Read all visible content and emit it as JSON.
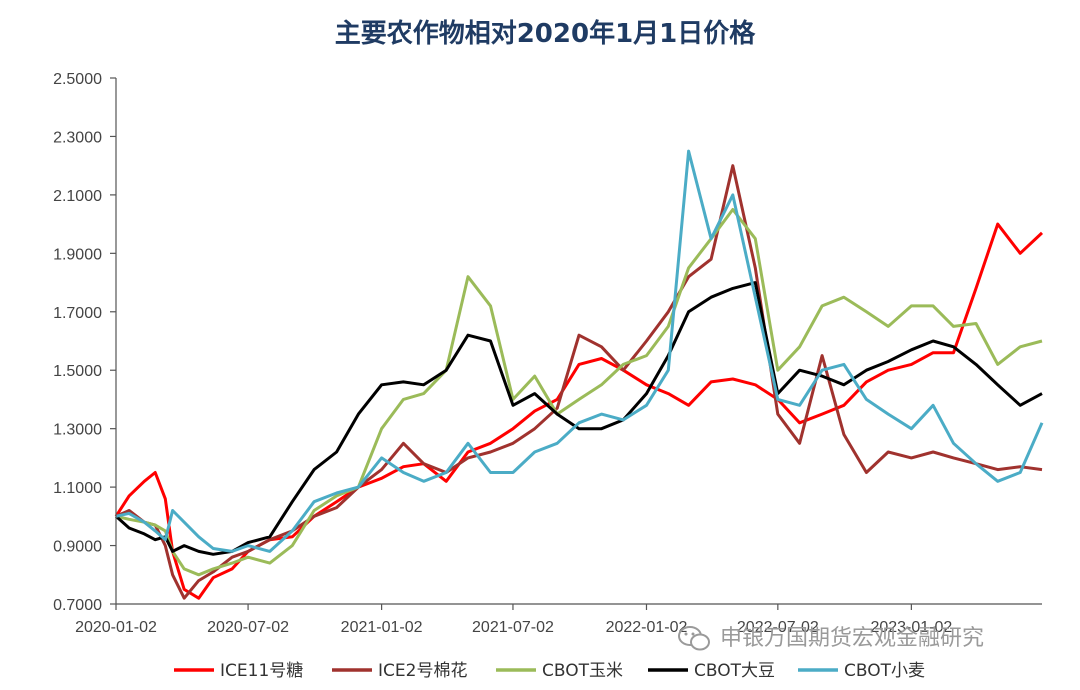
{
  "chart_data": {
    "type": "line",
    "title": "主要农作物相对2020年1月1日价格",
    "xlabel": "",
    "ylabel": "",
    "ylim": [
      0.7,
      2.5
    ],
    "yticks": [
      "0.7000",
      "0.9000",
      "1.1000",
      "1.3000",
      "1.5000",
      "1.7000",
      "1.9000",
      "2.1000",
      "2.3000",
      "2.5000"
    ],
    "x_range": [
      "2020-01-02",
      "2023-07-01"
    ],
    "xticks": [
      "2020-01-02",
      "2020-07-02",
      "2021-01-02",
      "2021-07-02",
      "2022-01-02",
      "2022-07-02",
      "2023-01-02"
    ],
    "grid": false,
    "legend": "bottom",
    "series": [
      {
        "name": "ICE11号糖",
        "color": "#FF0000",
        "points": [
          [
            "2020-01-02",
            1.0
          ],
          [
            "2020-01-20",
            1.07
          ],
          [
            "2020-02-10",
            1.12
          ],
          [
            "2020-02-25",
            1.15
          ],
          [
            "2020-03-10",
            1.06
          ],
          [
            "2020-03-20",
            0.88
          ],
          [
            "2020-04-05",
            0.75
          ],
          [
            "2020-04-25",
            0.72
          ],
          [
            "2020-05-15",
            0.79
          ],
          [
            "2020-06-10",
            0.82
          ],
          [
            "2020-07-02",
            0.88
          ],
          [
            "2020-08-01",
            0.92
          ],
          [
            "2020-09-01",
            0.93
          ],
          [
            "2020-10-01",
            1.0
          ],
          [
            "2020-11-01",
            1.05
          ],
          [
            "2020-12-01",
            1.1
          ],
          [
            "2021-01-02",
            1.13
          ],
          [
            "2021-02-01",
            1.17
          ],
          [
            "2021-03-01",
            1.18
          ],
          [
            "2021-04-01",
            1.12
          ],
          [
            "2021-05-01",
            1.22
          ],
          [
            "2021-06-01",
            1.25
          ],
          [
            "2021-07-02",
            1.3
          ],
          [
            "2021-08-01",
            1.36
          ],
          [
            "2021-09-01",
            1.4
          ],
          [
            "2021-10-01",
            1.52
          ],
          [
            "2021-11-01",
            1.54
          ],
          [
            "2021-12-01",
            1.5
          ],
          [
            "2022-01-02",
            1.45
          ],
          [
            "2022-02-01",
            1.42
          ],
          [
            "2022-03-01",
            1.38
          ],
          [
            "2022-04-01",
            1.46
          ],
          [
            "2022-05-01",
            1.47
          ],
          [
            "2022-06-01",
            1.45
          ],
          [
            "2022-07-02",
            1.4
          ],
          [
            "2022-08-01",
            1.32
          ],
          [
            "2022-09-01",
            1.35
          ],
          [
            "2022-10-01",
            1.38
          ],
          [
            "2022-11-01",
            1.46
          ],
          [
            "2022-12-01",
            1.5
          ],
          [
            "2023-01-02",
            1.52
          ],
          [
            "2023-02-01",
            1.56
          ],
          [
            "2023-03-01",
            1.56
          ],
          [
            "2023-04-01",
            1.78
          ],
          [
            "2023-05-01",
            2.0
          ],
          [
            "2023-06-01",
            1.9
          ],
          [
            "2023-07-01",
            1.97
          ]
        ]
      },
      {
        "name": "ICE2号棉花",
        "color": "#A0322E",
        "points": [
          [
            "2020-01-02",
            1.0
          ],
          [
            "2020-01-20",
            1.02
          ],
          [
            "2020-02-10",
            0.98
          ],
          [
            "2020-02-25",
            0.97
          ],
          [
            "2020-03-10",
            0.9
          ],
          [
            "2020-03-20",
            0.8
          ],
          [
            "2020-04-05",
            0.72
          ],
          [
            "2020-04-25",
            0.78
          ],
          [
            "2020-05-15",
            0.81
          ],
          [
            "2020-06-10",
            0.86
          ],
          [
            "2020-07-02",
            0.88
          ],
          [
            "2020-08-01",
            0.92
          ],
          [
            "2020-09-01",
            0.95
          ],
          [
            "2020-10-01",
            1.0
          ],
          [
            "2020-11-01",
            1.03
          ],
          [
            "2020-12-01",
            1.1
          ],
          [
            "2021-01-02",
            1.16
          ],
          [
            "2021-02-01",
            1.25
          ],
          [
            "2021-03-01",
            1.18
          ],
          [
            "2021-04-01",
            1.15
          ],
          [
            "2021-05-01",
            1.2
          ],
          [
            "2021-06-01",
            1.22
          ],
          [
            "2021-07-02",
            1.25
          ],
          [
            "2021-08-01",
            1.3
          ],
          [
            "2021-09-01",
            1.37
          ],
          [
            "2021-10-01",
            1.62
          ],
          [
            "2021-11-01",
            1.58
          ],
          [
            "2021-12-01",
            1.5
          ],
          [
            "2022-01-02",
            1.6
          ],
          [
            "2022-02-01",
            1.7
          ],
          [
            "2022-03-01",
            1.82
          ],
          [
            "2022-04-01",
            1.88
          ],
          [
            "2022-05-01",
            2.2
          ],
          [
            "2022-06-01",
            1.85
          ],
          [
            "2022-07-02",
            1.35
          ],
          [
            "2022-08-01",
            1.25
          ],
          [
            "2022-09-01",
            1.55
          ],
          [
            "2022-10-01",
            1.28
          ],
          [
            "2022-11-01",
            1.15
          ],
          [
            "2022-12-01",
            1.22
          ],
          [
            "2023-01-02",
            1.2
          ],
          [
            "2023-02-01",
            1.22
          ],
          [
            "2023-03-01",
            1.2
          ],
          [
            "2023-04-01",
            1.18
          ],
          [
            "2023-05-01",
            1.16
          ],
          [
            "2023-06-01",
            1.17
          ],
          [
            "2023-07-01",
            1.16
          ]
        ]
      },
      {
        "name": "CBOT玉米",
        "color": "#9BBB59",
        "points": [
          [
            "2020-01-02",
            1.0
          ],
          [
            "2020-01-20",
            0.99
          ],
          [
            "2020-02-10",
            0.98
          ],
          [
            "2020-02-25",
            0.97
          ],
          [
            "2020-03-10",
            0.95
          ],
          [
            "2020-03-20",
            0.88
          ],
          [
            "2020-04-05",
            0.82
          ],
          [
            "2020-04-25",
            0.8
          ],
          [
            "2020-05-15",
            0.82
          ],
          [
            "2020-06-10",
            0.84
          ],
          [
            "2020-07-02",
            0.86
          ],
          [
            "2020-08-01",
            0.84
          ],
          [
            "2020-09-01",
            0.9
          ],
          [
            "2020-10-01",
            1.02
          ],
          [
            "2020-11-01",
            1.07
          ],
          [
            "2020-12-01",
            1.1
          ],
          [
            "2021-01-02",
            1.3
          ],
          [
            "2021-02-01",
            1.4
          ],
          [
            "2021-03-01",
            1.42
          ],
          [
            "2021-04-01",
            1.5
          ],
          [
            "2021-05-01",
            1.82
          ],
          [
            "2021-06-01",
            1.72
          ],
          [
            "2021-07-02",
            1.4
          ],
          [
            "2021-08-01",
            1.48
          ],
          [
            "2021-09-01",
            1.35
          ],
          [
            "2021-10-01",
            1.4
          ],
          [
            "2021-11-01",
            1.45
          ],
          [
            "2021-12-01",
            1.52
          ],
          [
            "2022-01-02",
            1.55
          ],
          [
            "2022-02-01",
            1.65
          ],
          [
            "2022-03-01",
            1.85
          ],
          [
            "2022-04-01",
            1.95
          ],
          [
            "2022-05-01",
            2.05
          ],
          [
            "2022-06-01",
            1.95
          ],
          [
            "2022-07-02",
            1.5
          ],
          [
            "2022-08-01",
            1.58
          ],
          [
            "2022-09-01",
            1.72
          ],
          [
            "2022-10-01",
            1.75
          ],
          [
            "2022-11-01",
            1.7
          ],
          [
            "2022-12-01",
            1.65
          ],
          [
            "2023-01-02",
            1.72
          ],
          [
            "2023-02-01",
            1.72
          ],
          [
            "2023-03-01",
            1.65
          ],
          [
            "2023-04-01",
            1.66
          ],
          [
            "2023-05-01",
            1.52
          ],
          [
            "2023-06-01",
            1.58
          ],
          [
            "2023-07-01",
            1.6
          ]
        ]
      },
      {
        "name": "CBOT大豆",
        "color": "#000000",
        "points": [
          [
            "2020-01-02",
            1.0
          ],
          [
            "2020-01-20",
            0.96
          ],
          [
            "2020-02-10",
            0.94
          ],
          [
            "2020-02-25",
            0.92
          ],
          [
            "2020-03-10",
            0.93
          ],
          [
            "2020-03-20",
            0.88
          ],
          [
            "2020-04-05",
            0.9
          ],
          [
            "2020-04-25",
            0.88
          ],
          [
            "2020-05-15",
            0.87
          ],
          [
            "2020-06-10",
            0.88
          ],
          [
            "2020-07-02",
            0.91
          ],
          [
            "2020-08-01",
            0.93
          ],
          [
            "2020-09-01",
            1.05
          ],
          [
            "2020-10-01",
            1.16
          ],
          [
            "2020-11-01",
            1.22
          ],
          [
            "2020-12-01",
            1.35
          ],
          [
            "2021-01-02",
            1.45
          ],
          [
            "2021-02-01",
            1.46
          ],
          [
            "2021-03-01",
            1.45
          ],
          [
            "2021-04-01",
            1.5
          ],
          [
            "2021-05-01",
            1.62
          ],
          [
            "2021-06-01",
            1.6
          ],
          [
            "2021-07-02",
            1.38
          ],
          [
            "2021-08-01",
            1.42
          ],
          [
            "2021-09-01",
            1.35
          ],
          [
            "2021-10-01",
            1.3
          ],
          [
            "2021-11-01",
            1.3
          ],
          [
            "2021-12-01",
            1.33
          ],
          [
            "2022-01-02",
            1.42
          ],
          [
            "2022-02-01",
            1.55
          ],
          [
            "2022-03-01",
            1.7
          ],
          [
            "2022-04-01",
            1.75
          ],
          [
            "2022-05-01",
            1.78
          ],
          [
            "2022-06-01",
            1.8
          ],
          [
            "2022-07-02",
            1.42
          ],
          [
            "2022-08-01",
            1.5
          ],
          [
            "2022-09-01",
            1.48
          ],
          [
            "2022-10-01",
            1.45
          ],
          [
            "2022-11-01",
            1.5
          ],
          [
            "2022-12-01",
            1.53
          ],
          [
            "2023-01-02",
            1.57
          ],
          [
            "2023-02-01",
            1.6
          ],
          [
            "2023-03-01",
            1.58
          ],
          [
            "2023-04-01",
            1.52
          ],
          [
            "2023-05-01",
            1.45
          ],
          [
            "2023-06-01",
            1.38
          ],
          [
            "2023-07-01",
            1.42
          ]
        ]
      },
      {
        "name": "CBOT小麦",
        "color": "#4BACC6",
        "points": [
          [
            "2020-01-02",
            1.0
          ],
          [
            "2020-01-20",
            1.01
          ],
          [
            "2020-02-10",
            0.98
          ],
          [
            "2020-02-25",
            0.95
          ],
          [
            "2020-03-10",
            0.92
          ],
          [
            "2020-03-20",
            1.02
          ],
          [
            "2020-04-05",
            0.98
          ],
          [
            "2020-04-25",
            0.93
          ],
          [
            "2020-05-15",
            0.89
          ],
          [
            "2020-06-10",
            0.88
          ],
          [
            "2020-07-02",
            0.9
          ],
          [
            "2020-08-01",
            0.88
          ],
          [
            "2020-09-01",
            0.95
          ],
          [
            "2020-10-01",
            1.05
          ],
          [
            "2020-11-01",
            1.08
          ],
          [
            "2020-12-01",
            1.1
          ],
          [
            "2021-01-02",
            1.2
          ],
          [
            "2021-02-01",
            1.15
          ],
          [
            "2021-03-01",
            1.12
          ],
          [
            "2021-04-01",
            1.15
          ],
          [
            "2021-05-01",
            1.25
          ],
          [
            "2021-06-01",
            1.15
          ],
          [
            "2021-07-02",
            1.15
          ],
          [
            "2021-08-01",
            1.22
          ],
          [
            "2021-09-01",
            1.25
          ],
          [
            "2021-10-01",
            1.32
          ],
          [
            "2021-11-01",
            1.35
          ],
          [
            "2021-12-01",
            1.33
          ],
          [
            "2022-01-02",
            1.38
          ],
          [
            "2022-02-01",
            1.5
          ],
          [
            "2022-03-01",
            2.25
          ],
          [
            "2022-04-01",
            1.95
          ],
          [
            "2022-05-01",
            2.1
          ],
          [
            "2022-06-01",
            1.75
          ],
          [
            "2022-07-02",
            1.4
          ],
          [
            "2022-08-01",
            1.38
          ],
          [
            "2022-09-01",
            1.5
          ],
          [
            "2022-10-01",
            1.52
          ],
          [
            "2022-11-01",
            1.4
          ],
          [
            "2022-12-01",
            1.35
          ],
          [
            "2023-01-02",
            1.3
          ],
          [
            "2023-02-01",
            1.38
          ],
          [
            "2023-03-01",
            1.25
          ],
          [
            "2023-04-01",
            1.18
          ],
          [
            "2023-05-01",
            1.12
          ],
          [
            "2023-06-01",
            1.15
          ],
          [
            "2023-07-01",
            1.32
          ]
        ]
      }
    ]
  },
  "watermark": {
    "icon": "wechat-icon",
    "text": "申银万国期货宏观金融研究"
  }
}
